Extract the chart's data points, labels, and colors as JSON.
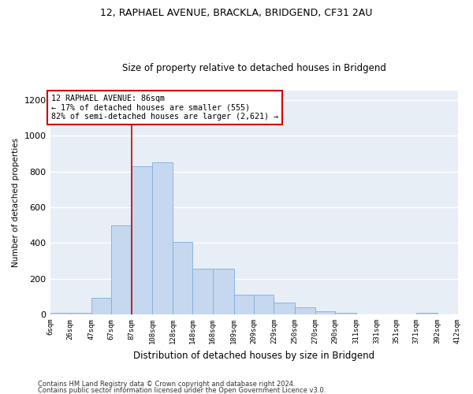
{
  "title1": "12, RAPHAEL AVENUE, BRACKLA, BRIDGEND, CF31 2AU",
  "title2": "Size of property relative to detached houses in Bridgend",
  "xlabel": "Distribution of detached houses by size in Bridgend",
  "ylabel": "Number of detached properties",
  "footnote1": "Contains HM Land Registry data © Crown copyright and database right 2024.",
  "footnote2": "Contains public sector information licensed under the Open Government Licence v3.0.",
  "annotation_line1": "12 RAPHAEL AVENUE: 86sqm",
  "annotation_line2": "← 17% of detached houses are smaller (555)",
  "annotation_line3": "82% of semi-detached houses are larger (2,621) →",
  "bar_left_edges": [
    6,
    26,
    47,
    67,
    87,
    108,
    128,
    148,
    168,
    189,
    209,
    229,
    250,
    270,
    290,
    311,
    331,
    351,
    371,
    392
  ],
  "bar_heights": [
    8,
    8,
    95,
    500,
    830,
    850,
    405,
    258,
    258,
    112,
    112,
    68,
    38,
    18,
    10,
    0,
    0,
    0,
    8,
    0
  ],
  "bar_widths": [
    20,
    21,
    20,
    20,
    21,
    20,
    20,
    20,
    21,
    20,
    20,
    21,
    20,
    20,
    21,
    20,
    20,
    20,
    21,
    20
  ],
  "bar_color": "#c5d8ef",
  "bar_edge_color": "#7faedb",
  "vline_x": 87,
  "vline_color": "#cc0000",
  "annotation_box_color": "#cc0000",
  "ylim": [
    0,
    1250
  ],
  "yticks": [
    0,
    200,
    400,
    600,
    800,
    1000,
    1200
  ],
  "bg_color": "#e8eef6",
  "grid_color": "#ffffff",
  "tick_labels": [
    "6sqm",
    "26sqm",
    "47sqm",
    "67sqm",
    "87sqm",
    "108sqm",
    "128sqm",
    "148sqm",
    "168sqm",
    "189sqm",
    "209sqm",
    "229sqm",
    "250sqm",
    "270sqm",
    "290sqm",
    "311sqm",
    "331sqm",
    "351sqm",
    "371sqm",
    "392sqm",
    "412sqm"
  ],
  "xlim_left": 6,
  "xlim_right": 412
}
